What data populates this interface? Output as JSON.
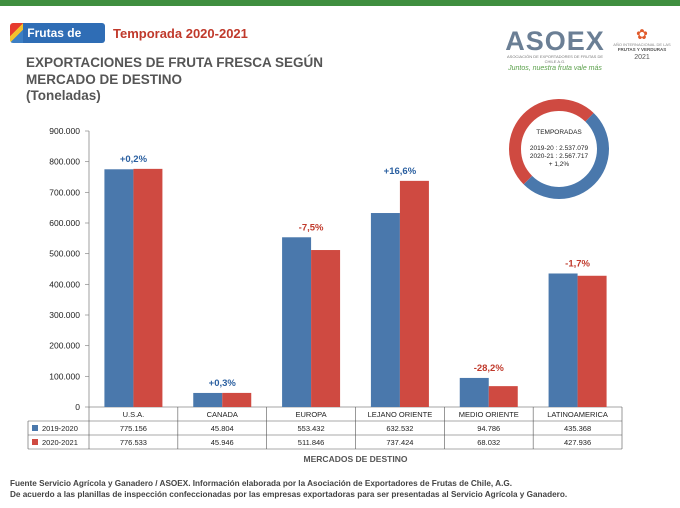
{
  "header": {
    "logo_text": "Frutas de Chile",
    "season_title": "Temporada 2020-2021",
    "title_line1": "EXPORTACIONES DE FRUTA FRESCA SEGÚN",
    "title_line2": "MERCADO DE DESTINO",
    "units": "(Toneladas)",
    "asoex_name": "ASOEX",
    "asoex_sub": "ASOCIACIÓN DE EXPORTADORES DE FRUTAS DE CHILE A.G.",
    "asoex_slogan": "Juntos, nuestra fruta vale más",
    "year_logo_line1": "AÑO INTERNACIONAL DE LAS",
    "year_logo_line2": "FRUTAS Y VERDURAS",
    "year_logo_line3": "2021"
  },
  "chart_data": {
    "type": "bar",
    "title": "EXPORTACIONES DE FRUTA FRESCA SEGÚN MERCADO DE DESTINO",
    "xlabel": "MERCADOS DE DESTINO",
    "ylabel": "Toneladas",
    "ylim": [
      0,
      900000
    ],
    "yticks": [
      0,
      100000,
      200000,
      300000,
      400000,
      500000,
      600000,
      700000,
      800000,
      900000
    ],
    "ytick_labels": [
      "0",
      "100.000",
      "200.000",
      "300.000",
      "400.000",
      "500.000",
      "600.000",
      "700.000",
      "800.000",
      "900.000"
    ],
    "categories": [
      "U.S.A.",
      "CANADA",
      "EUROPA",
      "LEJANO ORIENTE",
      "MEDIO ORIENTE",
      "LATINOAMERICA"
    ],
    "series": [
      {
        "name": "2019-2020",
        "color": "#4a78ac",
        "values": [
          775156,
          45804,
          553432,
          632532,
          94786,
          435368
        ],
        "labels": [
          "775.156",
          "45.804",
          "553.432",
          "632.532",
          "94.786",
          "435.368"
        ]
      },
      {
        "name": "2020-2021",
        "color": "#cf4a41",
        "values": [
          776533,
          45946,
          511846,
          737424,
          68032,
          427936
        ],
        "labels": [
          "776.533",
          "45.946",
          "511.846",
          "737.424",
          "68.032",
          "427.936"
        ]
      }
    ],
    "annotations": [
      "+0,2%",
      "+0,3%",
      "-7,5%",
      "+16,6%",
      "-28,2%",
      "-1,7%"
    ],
    "annotation_colors": [
      "#2a5fa0",
      "#2a5fa0",
      "#c0392b",
      "#2a5fa0",
      "#c0392b",
      "#c0392b"
    ],
    "legend": "table-below",
    "grid": false
  },
  "donut": {
    "title": "TEMPORADAS",
    "line1": "2019-20 : 2.537.079",
    "line2": "2020-21 : 2.567.717",
    "line3": "+ 1,2%",
    "values": [
      2537079,
      2567717
    ],
    "colors": [
      "#4a78ac",
      "#cf4a41"
    ]
  },
  "footer": {
    "line1": "Fuente Servicio Agrícola y Ganadero / ASOEX. Información elaborada por la Asociación de Exportadores de  Frutas de Chile, A.G.",
    "line2": "De acuerdo a las planillas de inspección confeccionadas por las empresas exportadoras  para ser presentadas al Servicio Agrícola y Ganadero."
  }
}
